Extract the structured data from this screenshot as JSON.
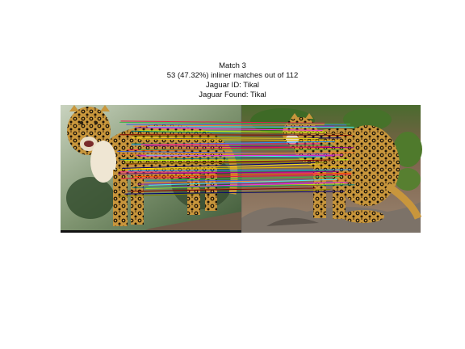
{
  "figure": {
    "title_lines": [
      "Match 3",
      "53 (47.32%) inliner matches out of 112",
      "Jaguar ID: Tikal",
      "Jaguar Found: Tikal"
    ],
    "left_image": {
      "subject": "jaguar standing on log, facing camera",
      "background_color": "#a9b89a"
    },
    "right_image": {
      "subject": "jaguar sitting on rocks, side view",
      "background_color": "#8a7560"
    },
    "match_count": 53,
    "match_colors": [
      "#e6194b",
      "#3cb44b",
      "#4363d8",
      "#f58231",
      "#911eb4",
      "#46f0f0",
      "#f032e6",
      "#bcf60c",
      "#008080",
      "#9a6324",
      "#800000",
      "#808000",
      "#000075",
      "#ffe119",
      "#e6b800",
      "#1e90ff",
      "#2e8b57",
      "#ff1493",
      "#8b008b",
      "#ff4500"
    ]
  }
}
